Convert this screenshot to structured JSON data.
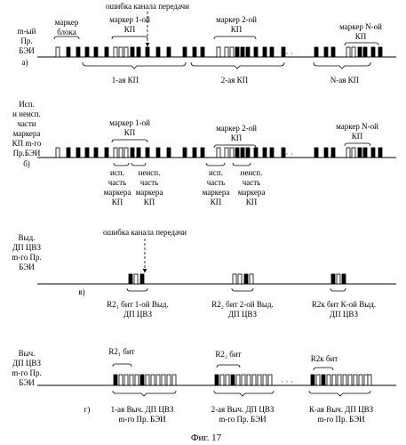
{
  "figure": {
    "caption": "Фиг. 17",
    "top_note": "ошибка канала передачи",
    "dots": "· · ·"
  },
  "panels": [
    {
      "id": "a",
      "letter": "а)",
      "side_label": [
        "m-ый",
        "Пр.",
        "БЭИ"
      ],
      "upper_labels": [
        [
          "маркер",
          "блока"
        ],
        [
          "маркер 1-ой",
          "КП"
        ],
        [
          "маркер 2-ой",
          "КП"
        ],
        [
          "маркер N-ой",
          "КП"
        ]
      ],
      "lower_labels": [
        [
          "1-ая КП"
        ],
        [
          "2-ая КП"
        ],
        [
          "N-ая КП"
        ]
      ]
    },
    {
      "id": "b",
      "letter": "б)",
      "side_label": [
        "Исп.",
        "и неисп.",
        "части",
        "маркера",
        "КП m-го",
        "Пр.БЭИ"
      ],
      "upper_labels": [
        [
          "маркер 1-ой",
          "КП"
        ],
        [
          "маркер 2-ой",
          "КП"
        ],
        [
          "маркер N-ой",
          "КП"
        ]
      ],
      "lower_labels": [
        [
          "исп.",
          "часть",
          "маркера",
          "КП"
        ],
        [
          "неисп.",
          "часть",
          "маркера",
          "КП"
        ],
        [
          "исп.",
          "часть",
          "маркера",
          "КП"
        ],
        [
          "неисп.",
          "часть",
          "маркера",
          "КП"
        ]
      ]
    },
    {
      "id": "v",
      "letter": "в)",
      "side_label": [
        "Выд.",
        "ДП ЦВЗ",
        "m-го Пр.",
        "БЭИ"
      ],
      "upper_labels": [
        [
          "ошибка канала передачи"
        ]
      ],
      "lower_labels": [
        [
          "R2₁ бит 1-ой Выд.",
          "ДП ЦВЗ"
        ],
        [
          "R2₂ бит 2-ой Выд.",
          "ДП ЦВЗ"
        ],
        [
          "R2к бит К-ой Выд.",
          "ДП ЦВЗ"
        ]
      ]
    },
    {
      "id": "g",
      "letter": "г)",
      "side_label": [
        "Выч.",
        "ДП ЦВЗ",
        "m-го Пр.",
        "БЭИ"
      ],
      "upper_labels": [
        [
          "R2₁ бит"
        ],
        [
          "R2₂ бит"
        ],
        [
          "R2к бит"
        ]
      ],
      "lower_labels": [
        [
          "1-ая Выч. ДП ЦВЗ",
          "m-го Пр. БЭИ"
        ],
        [
          "2-ая Выч. ДП ЦВЗ",
          "m-го Пр. БЭИ"
        ],
        [
          "К-ая Выч. ДП ЦВЗ",
          "m-го Пр. БЭИ"
        ]
      ]
    }
  ]
}
